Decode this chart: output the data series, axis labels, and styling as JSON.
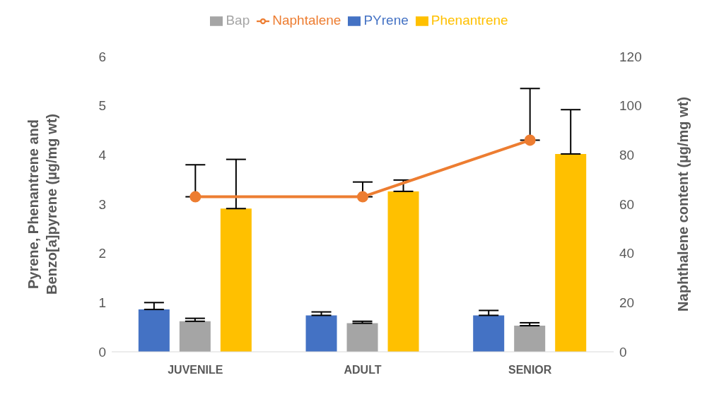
{
  "chart_data": {
    "type": "bar",
    "categories": [
      "JUVENILE",
      "ADULT",
      "SENIOR"
    ],
    "series": [
      {
        "name": "PYrene",
        "color": "#4472c4",
        "values": [
          0.86,
          0.74,
          0.74
        ],
        "errors": [
          [
            0.86,
            1.0
          ],
          [
            0.74,
            0.81
          ],
          [
            0.74,
            0.84
          ]
        ]
      },
      {
        "name": "Bap",
        "color": "#a5a5a5",
        "values": [
          0.62,
          0.58,
          0.53
        ],
        "errors": [
          [
            0.62,
            0.68
          ],
          [
            0.58,
            0.62
          ],
          [
            0.53,
            0.59
          ]
        ]
      },
      {
        "name": "Phenantrene",
        "color": "#ffc000",
        "values": [
          2.91,
          3.26,
          4.02
        ],
        "errors": [
          [
            2.91,
            3.91
          ],
          [
            3.26,
            3.49
          ],
          [
            4.02,
            4.92
          ]
        ]
      },
      {
        "name": "Naphtalene",
        "type": "line",
        "axis": "y2",
        "color": "#ed7d31",
        "values": [
          63,
          63,
          86
        ],
        "errors": [
          [
            63,
            76
          ],
          [
            63,
            69
          ],
          [
            86,
            107
          ]
        ]
      }
    ],
    "ylabel": "Pyrene, Phenantrene and Benzo[a]pyrene (µg/mg wt)",
    "y2label": "Naphthalene content (µg/mg wt)",
    "ylim": [
      0,
      6
    ],
    "yticks": [
      0,
      1,
      2,
      3,
      4,
      5,
      6
    ],
    "y2lim": [
      0,
      120
    ],
    "y2ticks": [
      0,
      20,
      40,
      60,
      80,
      100,
      120
    ],
    "legend": "top",
    "marker": "circle",
    "line_style": "solid",
    "grid": false
  }
}
